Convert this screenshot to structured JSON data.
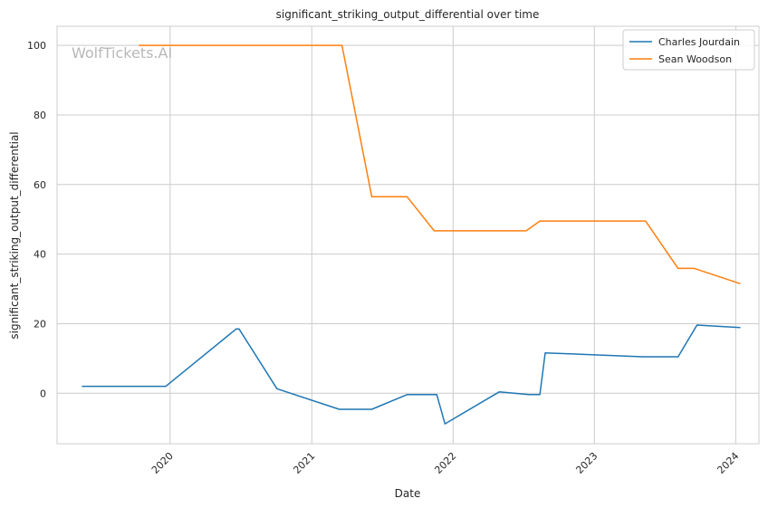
{
  "chart_data": {
    "type": "line",
    "title": "significant_striking_output_differential over time",
    "xlabel": "Date",
    "ylabel": "significant_striking_output_differential",
    "watermark": "WolfTickets.AI",
    "x_ticks": [
      "2020",
      "2021",
      "2022",
      "2023",
      "2024"
    ],
    "y_ticks": [
      "0",
      "20",
      "40",
      "60",
      "80",
      "100"
    ],
    "xlim": [
      "2019-03-15",
      "2024-03-01"
    ],
    "ylim": [
      -14.5,
      105.5
    ],
    "grid": true,
    "legend_position": "top-right",
    "series": [
      {
        "name": "Charles Jourdain",
        "color": "#1f77b4",
        "points": [
          [
            "2019-05-18",
            2.0
          ],
          [
            "2019-12-21",
            2.0
          ],
          [
            "2020-06-20",
            18.5
          ],
          [
            "2020-06-27",
            18.5
          ],
          [
            "2020-10-03",
            1.3
          ],
          [
            "2021-03-13",
            -4.6
          ],
          [
            "2021-06-05",
            -4.6
          ],
          [
            "2021-09-04",
            -0.4
          ],
          [
            "2021-11-20",
            -0.4
          ],
          [
            "2021-12-11",
            -8.8
          ],
          [
            "2022-04-30",
            0.4
          ],
          [
            "2022-07-16",
            -0.4
          ],
          [
            "2022-08-13",
            -0.4
          ],
          [
            "2022-08-27",
            11.6
          ],
          [
            "2023-05-06",
            10.5
          ],
          [
            "2023-08-05",
            10.5
          ],
          [
            "2023-09-23",
            19.6
          ],
          [
            "2024-01-13",
            18.9
          ]
        ]
      },
      {
        "name": "Sean Woodson",
        "color": "#ff7f0e",
        "points": [
          [
            "2019-10-12",
            100.0
          ],
          [
            "2021-03-20",
            100.0
          ],
          [
            "2021-06-05",
            56.5
          ],
          [
            "2021-09-04",
            56.5
          ],
          [
            "2021-11-13",
            46.7
          ],
          [
            "2022-07-09",
            46.7
          ],
          [
            "2022-08-13",
            49.5
          ],
          [
            "2023-05-13",
            49.5
          ],
          [
            "2023-08-05",
            35.9
          ],
          [
            "2023-09-16",
            35.9
          ],
          [
            "2024-01-13",
            31.5
          ]
        ]
      }
    ]
  }
}
